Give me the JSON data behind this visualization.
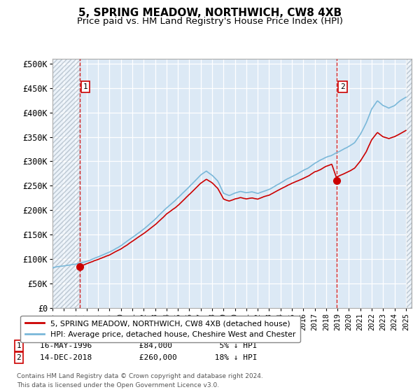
{
  "title": "5, SPRING MEADOW, NORTHWICH, CW8 4XB",
  "subtitle": "Price paid vs. HM Land Registry's House Price Index (HPI)",
  "ylabel_ticks": [
    "£0",
    "£50K",
    "£100K",
    "£150K",
    "£200K",
    "£250K",
    "£300K",
    "£350K",
    "£400K",
    "£450K",
    "£500K"
  ],
  "ytick_values": [
    0,
    50000,
    100000,
    150000,
    200000,
    250000,
    300000,
    350000,
    400000,
    450000,
    500000
  ],
  "ylim": [
    0,
    510000
  ],
  "xlim_start": 1994.0,
  "xlim_end": 2025.5,
  "sale1_date": 1996.37,
  "sale1_price": 84000,
  "sale2_date": 2018.95,
  "sale2_price": 260000,
  "hpi_color": "#7ab8d9",
  "price_color": "#cc0000",
  "vline_color": "#cc0000",
  "background_color": "#dce9f5",
  "legend_label1": "5, SPRING MEADOW, NORTHWICH, CW8 4XB (detached house)",
  "legend_label2": "HPI: Average price, detached house, Cheshire West and Chester",
  "footnote": "Contains HM Land Registry data © Crown copyright and database right 2024.\nThis data is licensed under the Open Government Licence v3.0.",
  "title_fontsize": 11,
  "subtitle_fontsize": 9.5,
  "hpi_knots_x": [
    1994.0,
    1995.0,
    1996.0,
    1997.0,
    1998.0,
    1999.0,
    2000.0,
    2001.0,
    2002.0,
    2003.0,
    2004.0,
    2005.0,
    2006.0,
    2007.0,
    2007.5,
    2008.0,
    2008.5,
    2009.0,
    2009.5,
    2010.0,
    2010.5,
    2011.0,
    2011.5,
    2012.0,
    2012.5,
    2013.0,
    2013.5,
    2014.0,
    2014.5,
    2015.0,
    2015.5,
    2016.0,
    2016.5,
    2017.0,
    2017.5,
    2018.0,
    2018.5,
    2019.0,
    2019.5,
    2020.0,
    2020.5,
    2021.0,
    2021.5,
    2022.0,
    2022.5,
    2023.0,
    2023.5,
    2024.0,
    2024.5,
    2025.0
  ],
  "hpi_knots_y": [
    82000,
    86000,
    90000,
    96000,
    105000,
    115000,
    128000,
    145000,
    162000,
    182000,
    205000,
    225000,
    248000,
    272000,
    280000,
    272000,
    260000,
    235000,
    230000,
    235000,
    238000,
    235000,
    237000,
    234000,
    238000,
    242000,
    248000,
    255000,
    262000,
    268000,
    274000,
    280000,
    286000,
    295000,
    302000,
    308000,
    312000,
    318000,
    324000,
    330000,
    338000,
    355000,
    378000,
    408000,
    425000,
    415000,
    410000,
    415000,
    425000,
    432000
  ],
  "price_knots_x": [
    1996.37,
    1997.0,
    1998.0,
    1999.0,
    2000.0,
    2001.0,
    2002.0,
    2003.0,
    2004.0,
    2005.0,
    2006.0,
    2007.0,
    2007.5,
    2008.0,
    2008.5,
    2009.0,
    2009.5,
    2010.0,
    2010.5,
    2011.0,
    2011.5,
    2012.0,
    2012.5,
    2013.0,
    2013.5,
    2014.0,
    2014.5,
    2015.0,
    2015.5,
    2016.0,
    2016.5,
    2017.0,
    2017.5,
    2018.0,
    2018.5,
    2018.95,
    2019.0,
    2019.5,
    2020.0,
    2020.5,
    2021.0,
    2021.5,
    2022.0,
    2022.5,
    2023.0,
    2023.5,
    2024.0,
    2024.5,
    2025.0
  ],
  "price_knots_y": [
    84000,
    90000,
    98000,
    108000,
    120000,
    136000,
    152000,
    170000,
    192000,
    210000,
    232000,
    255000,
    263000,
    256000,
    244000,
    222000,
    218000,
    222000,
    225000,
    222000,
    224000,
    221000,
    225000,
    228000,
    234000,
    240000,
    246000,
    252000,
    257000,
    262000,
    267000,
    275000,
    280000,
    287000,
    291000,
    260000,
    265000,
    270000,
    275000,
    282000,
    296000,
    314000,
    340000,
    355000,
    346000,
    342000,
    346000,
    352000,
    358000
  ]
}
